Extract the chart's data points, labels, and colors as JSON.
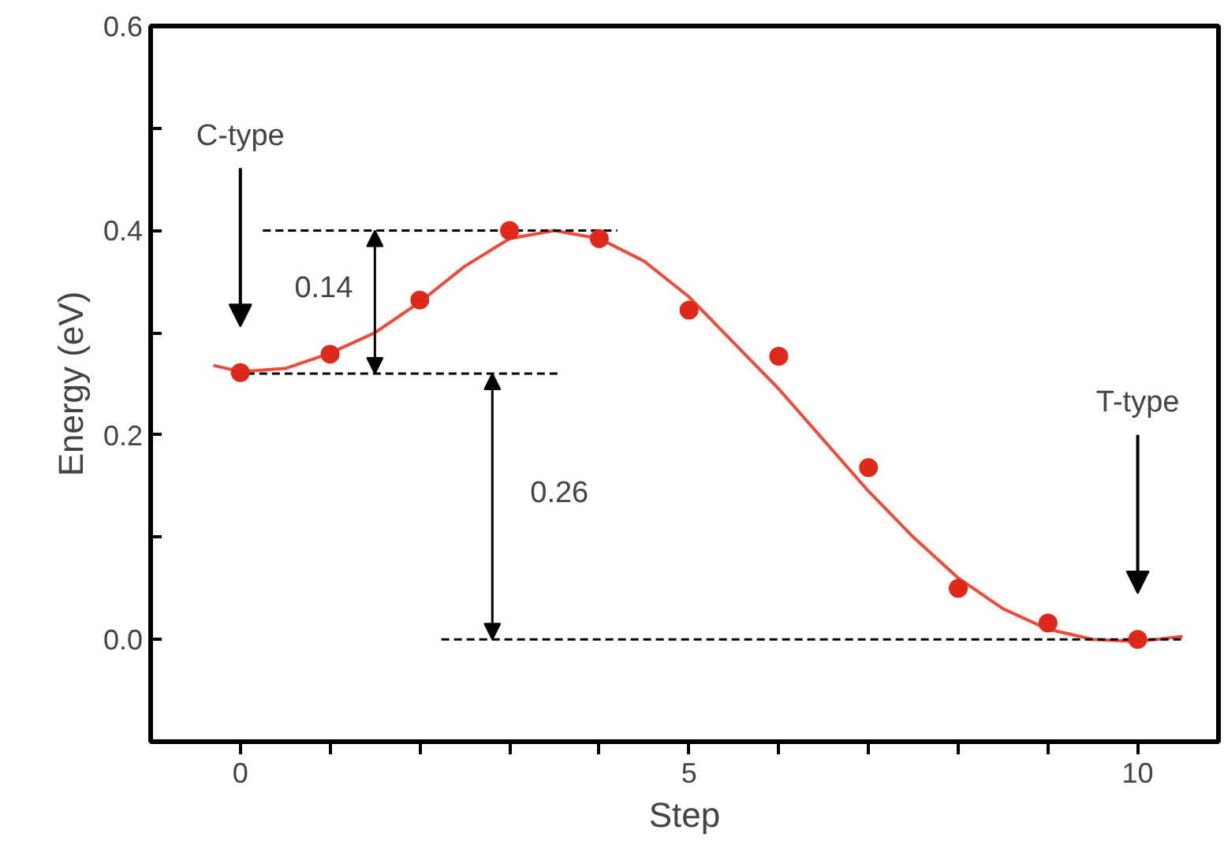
{
  "chart_data": {
    "type": "scatter",
    "xlabel": "Step",
    "ylabel": "Energy (eV)",
    "xlim": [
      -1,
      10.9
    ],
    "ylim": [
      -0.1,
      0.6
    ],
    "xticks": [
      0,
      {
        "value": 1,
        "label": null
      },
      {
        "value": 2,
        "label": null
      },
      {
        "value": 3,
        "label": null
      },
      {
        "value": 4,
        "label": null
      },
      5,
      {
        "value": 6,
        "label": null
      },
      {
        "value": 7,
        "label": null
      },
      {
        "value": 8,
        "label": null
      },
      {
        "value": 9,
        "label": null
      },
      10
    ],
    "yticks": [
      {
        "value": -0.1,
        "label": null
      },
      {
        "value": 0,
        "label": "0.0"
      },
      {
        "value": 0.1,
        "label": null
      },
      {
        "value": 0.2,
        "label": "0.2"
      },
      {
        "value": 0.3,
        "label": null
      },
      {
        "value": 0.4,
        "label": "0.4"
      },
      {
        "value": 0.5,
        "label": null
      },
      {
        "value": 0.6,
        "label": "0.6"
      }
    ],
    "grid": false,
    "series": [
      {
        "type": "line",
        "color": "#f04a3a",
        "x": [
          -0.3,
          0,
          0.5,
          1,
          1.5,
          2,
          2.5,
          3,
          3.5,
          4,
          4.5,
          5,
          5.5,
          6,
          6.5,
          7,
          7.5,
          8,
          8.5,
          9,
          9.5,
          10,
          10.5
        ],
        "values": [
          0.268,
          0.262,
          0.265,
          0.28,
          0.3,
          0.33,
          0.365,
          0.392,
          0.4,
          0.392,
          0.37,
          0.335,
          0.29,
          0.245,
          0.195,
          0.145,
          0.1,
          0.06,
          0.03,
          0.01,
          0.0,
          -0.002,
          0.003
        ]
      },
      {
        "type": "line",
        "line_style": "dashed",
        "color": "#000000",
        "x": [
          0.25,
          4.2
        ],
        "values": [
          0.4,
          0.4
        ]
      },
      {
        "type": "line",
        "line_style": "dashed",
        "color": "#000000",
        "x": [
          -0.07,
          3.57
        ],
        "values": [
          0.26,
          0.26
        ]
      },
      {
        "type": "line",
        "line_style": "dashed",
        "color": "#000000",
        "x": [
          2.24,
          10.5
        ],
        "values": [
          0,
          0
        ]
      },
      {
        "marker": "circle",
        "color": "#e0281a",
        "x": [
          0,
          1,
          2,
          3,
          4,
          5,
          6,
          7,
          8,
          9,
          10
        ],
        "values": [
          0.261,
          0.279,
          0.332,
          0.4,
          0.392,
          0.322,
          0.277,
          0.168,
          0.05,
          0.016,
          0.0
        ]
      }
    ],
    "annotations": [
      "C-type",
      "0.14",
      "0.26",
      "T-type"
    ]
  }
}
